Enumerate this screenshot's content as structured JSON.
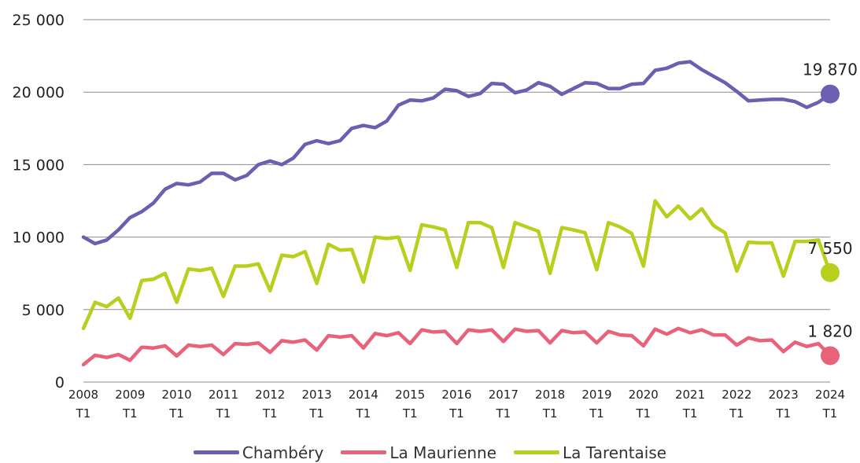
{
  "chart_data": {
    "type": "line",
    "ylim": [
      0,
      25000
    ],
    "yticks": [
      0,
      5000,
      10000,
      15000,
      20000,
      25000
    ],
    "ytick_labels": [
      "0",
      "5 000",
      "10 000",
      "15 000",
      "20 000",
      "25 000"
    ],
    "xtick_years": [
      "2008",
      "2009",
      "2010",
      "2011",
      "2012",
      "2013",
      "2014",
      "2015",
      "2016",
      "2017",
      "2018",
      "2019",
      "2020",
      "2021",
      "2022",
      "2023",
      "2024"
    ],
    "xtick_sub": "T1",
    "grid": true,
    "legend_position": "bottom",
    "series": [
      {
        "name": "Chambéry",
        "color": "#6a5fb0",
        "end_label": "19 870",
        "values": [
          10000,
          9550,
          9800,
          10500,
          11350,
          11750,
          12350,
          13300,
          13700,
          13600,
          13800,
          14400,
          14400,
          13950,
          14250,
          15000,
          15250,
          15000,
          15450,
          16400,
          16650,
          16450,
          16650,
          17500,
          17700,
          17550,
          18000,
          19100,
          19450,
          19400,
          19600,
          20200,
          20100,
          19700,
          19900,
          20600,
          20550,
          19950,
          20150,
          20650,
          20400,
          19850,
          20250,
          20650,
          20600,
          20250,
          20250,
          20550,
          20600,
          21500,
          21650,
          22000,
          22100,
          21550,
          21100,
          20650,
          20050,
          19400,
          19450,
          19500,
          19500,
          19350,
          18950,
          19300,
          19870
        ]
      },
      {
        "name": "La Maurienne",
        "color": "#e8627a",
        "end_label": "1 820",
        "values": [
          1200,
          1850,
          1700,
          1900,
          1500,
          2400,
          2350,
          2500,
          1800,
          2550,
          2450,
          2550,
          1900,
          2650,
          2600,
          2700,
          2050,
          2850,
          2750,
          2900,
          2200,
          3200,
          3100,
          3200,
          2350,
          3350,
          3200,
          3400,
          2650,
          3600,
          3450,
          3500,
          2650,
          3600,
          3500,
          3600,
          2800,
          3650,
          3500,
          3550,
          2700,
          3550,
          3400,
          3450,
          2700,
          3500,
          3250,
          3200,
          2500,
          3650,
          3300,
          3700,
          3400,
          3600,
          3250,
          3250,
          2550,
          3050,
          2850,
          2900,
          2100,
          2750,
          2450,
          2650,
          1820
        ]
      },
      {
        "name": "La Tarentaise",
        "color": "#b9cf1e",
        "end_label": "7 550",
        "values": [
          3700,
          5500,
          5200,
          5800,
          4400,
          7000,
          7100,
          7500,
          5500,
          7800,
          7700,
          7850,
          5900,
          8000,
          8000,
          8150,
          6300,
          8750,
          8650,
          9000,
          6800,
          9500,
          9100,
          9150,
          6900,
          10000,
          9900,
          10000,
          7700,
          10850,
          10700,
          10500,
          7900,
          11000,
          11000,
          10650,
          7900,
          11000,
          10700,
          10400,
          7500,
          10650,
          10500,
          10300,
          7750,
          11000,
          10700,
          10250,
          8000,
          12500,
          11400,
          12150,
          11250,
          11950,
          10800,
          10300,
          7650,
          9650,
          9600,
          9600,
          7300,
          9700,
          9700,
          9800,
          7550
        ]
      }
    ]
  }
}
